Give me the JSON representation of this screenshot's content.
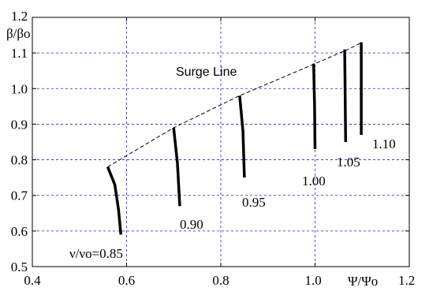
{
  "chart_data": {
    "type": "line",
    "ylabel": "β/βo",
    "xlabel": "Ψ/Ψo",
    "xlim": [
      0.4,
      1.2
    ],
    "ylim": [
      0.5,
      1.2
    ],
    "x_ticks": [
      "0.4",
      "0.6",
      "0.8",
      "1.0",
      "1.2"
    ],
    "y_ticks": [
      "0.5",
      "0.6",
      "0.7",
      "0.8",
      "0.9",
      "1.0",
      "1.1",
      "1.2"
    ],
    "grid": true,
    "colors": {
      "grid": "#2222cc",
      "lines": "#000000"
    },
    "surge_line": {
      "label": "Surge Line",
      "x": [
        0.56,
        0.7,
        0.84,
        1.0,
        1.07,
        1.1
      ],
      "y": [
        0.78,
        0.89,
        0.98,
        1.07,
        1.11,
        1.13
      ]
    },
    "series": [
      {
        "name": "ν/νo=0.85",
        "label": "ν/νo=0.85",
        "x": [
          0.56,
          0.575,
          0.583,
          0.588
        ],
        "y": [
          0.78,
          0.73,
          0.66,
          0.59
        ]
      },
      {
        "name": "0.90",
        "label": "0.90",
        "x": [
          0.7,
          0.708,
          0.713
        ],
        "y": [
          0.89,
          0.79,
          0.67
        ]
      },
      {
        "name": "0.95",
        "label": "0.95",
        "x": [
          0.84,
          0.847,
          0.85
        ],
        "y": [
          0.98,
          0.88,
          0.75
        ]
      },
      {
        "name": "1.00",
        "label": "1.00",
        "x": [
          0.997,
          0.999,
          1.0
        ],
        "y": [
          1.07,
          0.95,
          0.83
        ]
      },
      {
        "name": "1.05",
        "label": "1.05",
        "x": [
          1.063,
          1.064,
          1.065
        ],
        "y": [
          1.11,
          0.98,
          0.85
        ]
      },
      {
        "name": "1.10",
        "label": "1.10",
        "x": [
          1.098,
          1.098,
          1.098
        ],
        "y": [
          1.13,
          1.0,
          0.87
        ]
      }
    ]
  }
}
